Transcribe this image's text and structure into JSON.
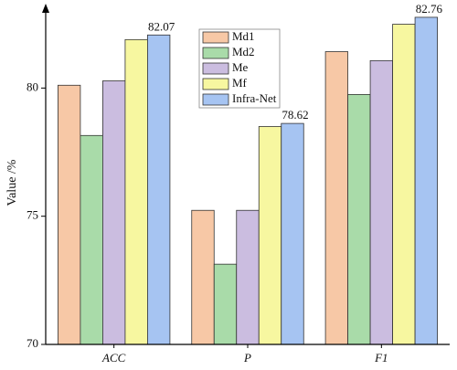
{
  "chart_data": {
    "type": "bar",
    "y_label": "Value /%",
    "categories": [
      "ACC",
      "P",
      "F1"
    ],
    "series": [
      {
        "name": "Md1",
        "color": "#f7c8a6",
        "values": [
          80.11,
          75.23,
          81.42
        ]
      },
      {
        "name": "Md2",
        "color": "#a9dba9",
        "values": [
          78.15,
          73.13,
          79.75
        ]
      },
      {
        "name": "Me",
        "color": "#cbbde0",
        "values": [
          80.28,
          75.23,
          81.07
        ]
      },
      {
        "name": "Mf",
        "color": "#f7f7a0",
        "values": [
          81.89,
          78.5,
          82.49
        ]
      },
      {
        "name": "Infra-Net",
        "color": "#a6c4f2",
        "values": [
          82.07,
          78.62,
          82.76
        ],
        "data_labels": true
      }
    ],
    "ylim": [
      70,
      82.9
    ],
    "yticks": [
      70,
      75,
      80
    ]
  }
}
